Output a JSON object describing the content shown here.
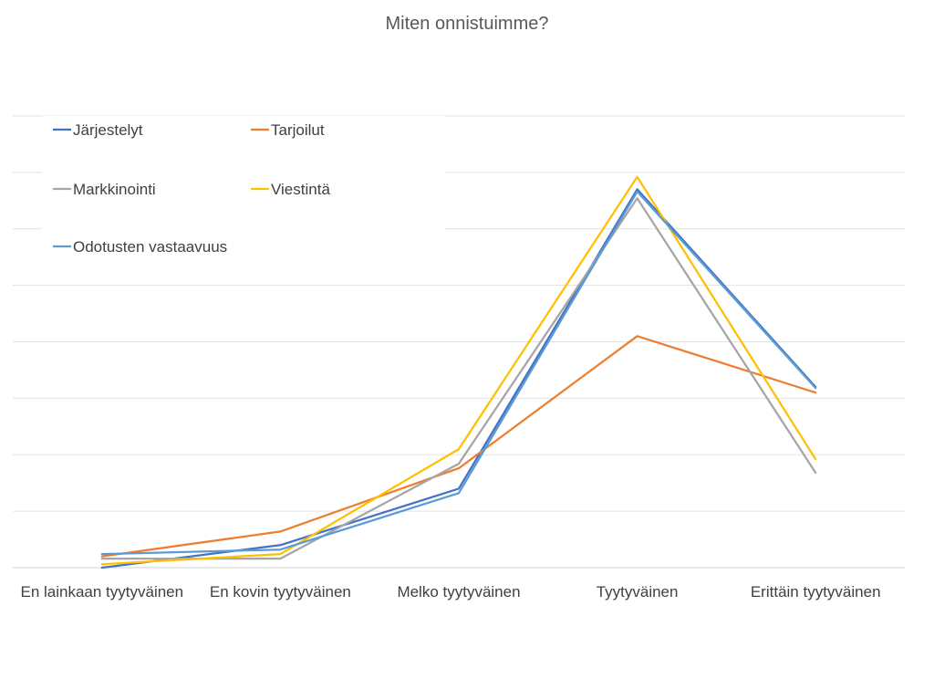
{
  "chart_data": {
    "type": "line",
    "title": "Miten onnistuimme?",
    "xlabel": "",
    "ylabel": "",
    "categories": [
      "En lainkaan tyytyväinen",
      "En kovin tyytyväinen",
      "Melko tyytyväinen",
      "Tyytyväinen",
      "Erittäin tyytyväinen"
    ],
    "ylim": [
      0,
      40
    ],
    "grid": true,
    "y_axis_labels_shown": false,
    "legend_placement": "top-left",
    "series": [
      {
        "name": "Järjestelyt",
        "color": "#4472C4",
        "values": [
          0,
          2,
          7,
          33.5,
          16
        ]
      },
      {
        "name": "Tarjoilut",
        "color": "#ED7D31",
        "values": [
          1,
          3.2,
          8.8,
          20.5,
          15.5
        ]
      },
      {
        "name": "Markkinointi",
        "color": "#A5A5A5",
        "values": [
          0.8,
          0.8,
          9.2,
          32.7,
          8.4
        ]
      },
      {
        "name": "Viestintä",
        "color": "#FFC000",
        "values": [
          0.3,
          1.2,
          10.5,
          34.6,
          9.6
        ]
      },
      {
        "name": "Odotusten vastaavuus",
        "color": "#5B9BD5",
        "values": [
          1.2,
          1.6,
          6.6,
          33.3,
          15.9
        ]
      }
    ]
  }
}
